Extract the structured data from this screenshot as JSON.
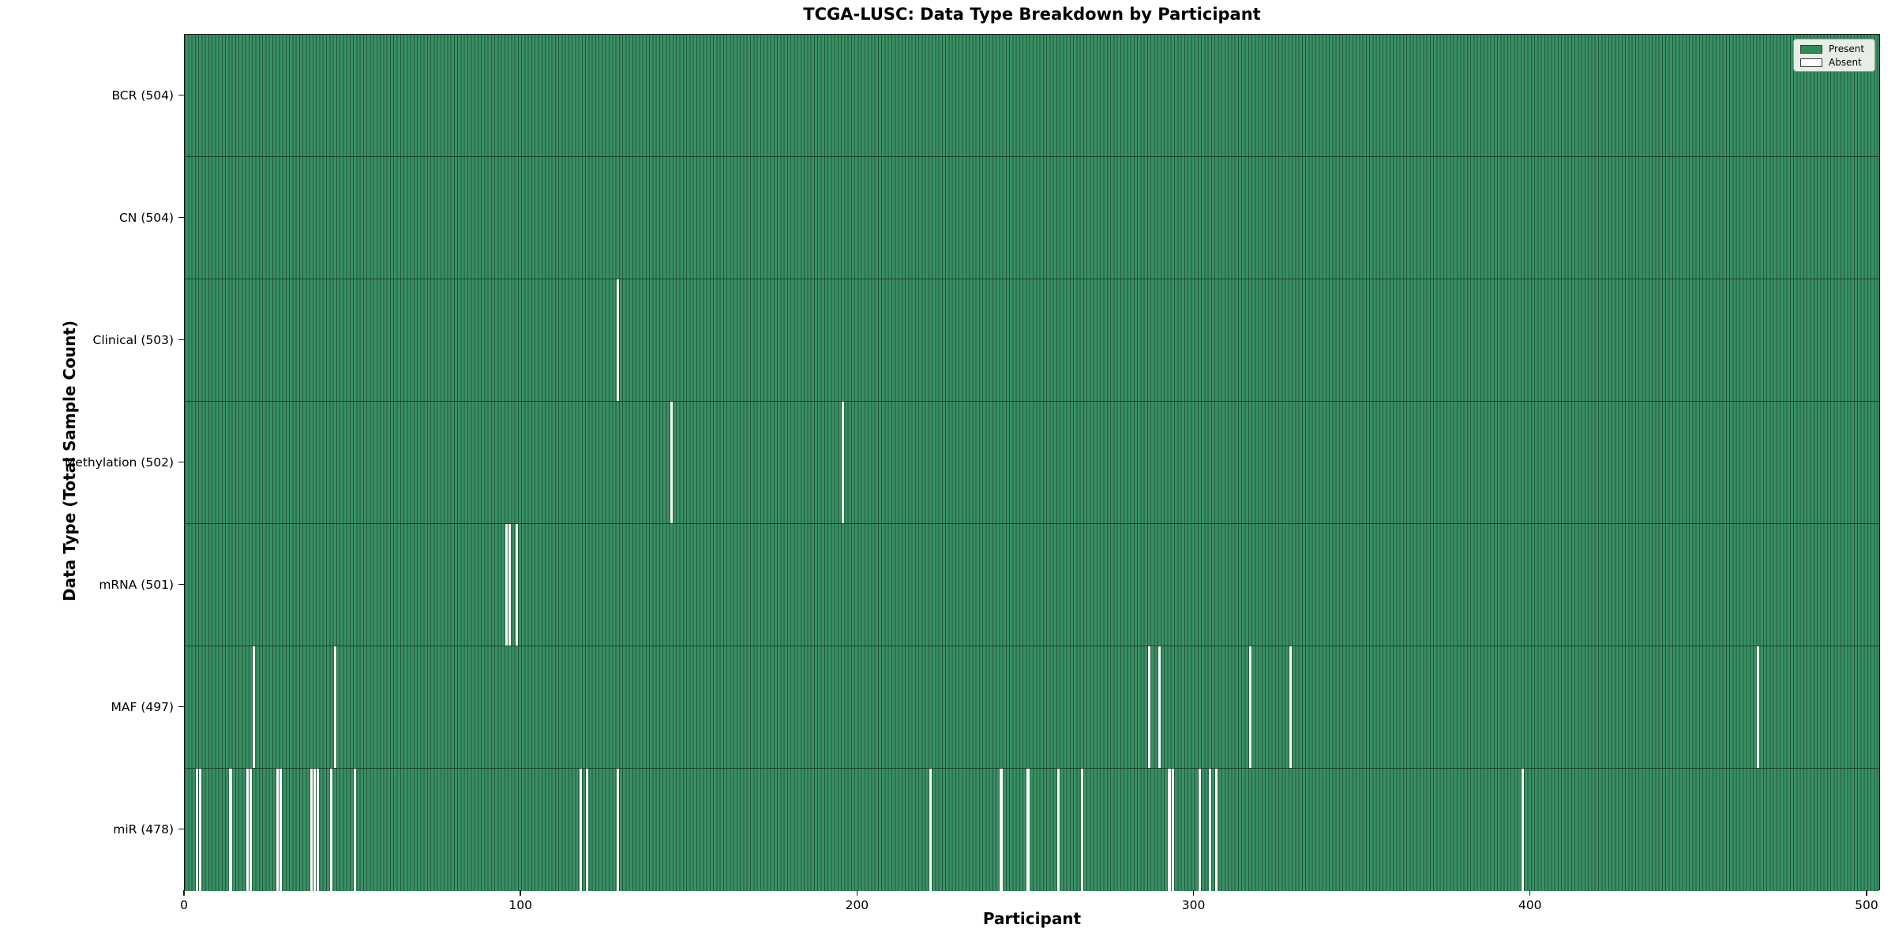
{
  "figure": {
    "title": "TCGA-LUSC: Data Type Breakdown by Participant",
    "xlabel": "Participant",
    "ylabel": "Data Type (Total Sample Count)"
  },
  "legend": {
    "items": [
      {
        "label": "Present",
        "color": "#2e8b57"
      },
      {
        "label": "Absent",
        "color": "#ffffff"
      }
    ]
  },
  "chart_data": {
    "type": "heatmap",
    "title": "TCGA-LUSC: Data Type Breakdown by Participant",
    "xlabel": "Participant",
    "ylabel": "Data Type (Total Sample Count)",
    "legend": [
      "Present",
      "Absent"
    ],
    "legend_position": "upper right",
    "n_participants": 504,
    "xlim": [
      0,
      504
    ],
    "x_ticks": [
      0,
      100,
      200,
      300,
      400,
      500
    ],
    "grid": false,
    "colors": {
      "present": "#3a9065",
      "present_legend": "#2e8b57",
      "absent": "#ffffff",
      "bar_edge": "#1e5739",
      "row_divider": "#1c3f2b",
      "axis": "#1a1a1a"
    },
    "rows": [
      {
        "label": "BCR (504)",
        "data_type": "BCR",
        "total_sample_count": 504,
        "absent_participants": []
      },
      {
        "label": "CN (504)",
        "data_type": "CN",
        "total_sample_count": 504,
        "absent_participants": []
      },
      {
        "label": "Clinical (503)",
        "data_type": "Clinical",
        "total_sample_count": 503,
        "absent_participants": [
          128
        ]
      },
      {
        "label": "Methylation (502)",
        "data_type": "Methylation",
        "total_sample_count": 502,
        "absent_participants": [
          144,
          195
        ]
      },
      {
        "label": "mRNA (501)",
        "data_type": "mRNA",
        "total_sample_count": 501,
        "absent_participants": [
          95,
          96,
          98
        ]
      },
      {
        "label": "MAF (497)",
        "data_type": "MAF",
        "total_sample_count": 497,
        "absent_participants": [
          20,
          44,
          286,
          289,
          316,
          328,
          467
        ]
      },
      {
        "label": "miR (478)",
        "data_type": "miR",
        "total_sample_count": 478,
        "absent_participants": [
          3,
          4,
          13,
          18,
          19,
          27,
          28,
          37,
          38,
          39,
          43,
          50,
          117,
          119,
          128,
          221,
          242,
          250,
          259,
          266,
          292,
          293,
          301,
          304,
          306,
          397
        ]
      }
    ]
  }
}
